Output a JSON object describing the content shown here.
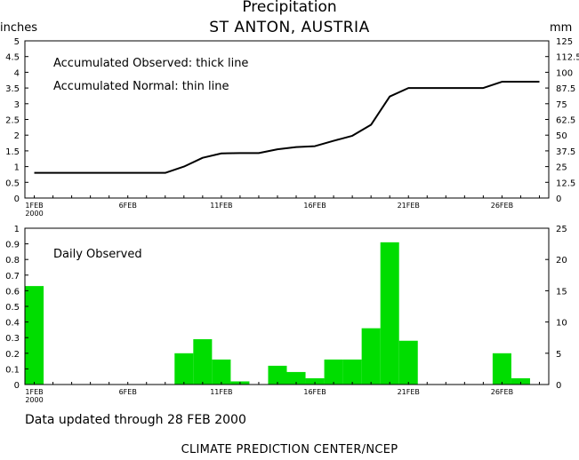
{
  "title": "Precipitation",
  "subtitle": "ST ANTON, AUSTRIA",
  "unit_left": "inches",
  "unit_right": "mm",
  "footer_updated": "Data updated through 28 FEB 2000",
  "footer_credit": "CLIMATE PREDICTION CENTER/NCEP",
  "colors": {
    "bars": "#00dd00",
    "lines": "#000000"
  },
  "chart_data": [
    {
      "type": "line",
      "x_dates": [
        "1FEB",
        "2FEB",
        "3FEB",
        "4FEB",
        "5FEB",
        "6FEB",
        "7FEB",
        "8FEB",
        "9FEB",
        "10FEB",
        "11FEB",
        "12FEB",
        "13FEB",
        "14FEB",
        "15FEB",
        "16FEB",
        "17FEB",
        "18FEB",
        "19FEB",
        "20FEB",
        "21FEB",
        "22FEB",
        "23FEB",
        "24FEB",
        "25FEB",
        "26FEB",
        "27FEB",
        "28FEB"
      ],
      "x_tick_labels": [
        "1FEB",
        "6FEB",
        "11FEB",
        "16FEB",
        "21FEB",
        "26FEB"
      ],
      "x_year_label": "2000",
      "ylim_inches": [
        0,
        5
      ],
      "y_ticks_inches": [
        "0",
        "0.5",
        "1",
        "1.5",
        "2",
        "2.5",
        "3",
        "3.5",
        "4",
        "4.5",
        "5"
      ],
      "ylim_mm": [
        0,
        125
      ],
      "y_ticks_mm": [
        "0",
        "12.5",
        "25",
        "37.5",
        "50",
        "62.5",
        "75",
        "87.5",
        "100",
        "112.5",
        "125"
      ],
      "annotations": [
        "Accumulated Observed: thick line",
        "Accumulated Normal: thin line"
      ],
      "series": [
        {
          "values": [
            0.8,
            0.8,
            0.8,
            0.8,
            0.8,
            0.8,
            0.8,
            0.8,
            1.0,
            1.28,
            1.42,
            1.43,
            1.43,
            1.55,
            1.62,
            1.65,
            1.82,
            1.98,
            2.33,
            3.23,
            3.5,
            3.5,
            3.5,
            3.5,
            3.5,
            3.7,
            3.7,
            3.7
          ]
        }
      ]
    },
    {
      "type": "bar",
      "x_dates": [
        "1FEB",
        "2FEB",
        "3FEB",
        "4FEB",
        "5FEB",
        "6FEB",
        "7FEB",
        "8FEB",
        "9FEB",
        "10FEB",
        "11FEB",
        "12FEB",
        "13FEB",
        "14FEB",
        "15FEB",
        "16FEB",
        "17FEB",
        "18FEB",
        "19FEB",
        "20FEB",
        "21FEB",
        "22FEB",
        "23FEB",
        "24FEB",
        "25FEB",
        "26FEB",
        "27FEB",
        "28FEB"
      ],
      "x_tick_labels": [
        "1FEB",
        "6FEB",
        "11FEB",
        "16FEB",
        "21FEB",
        "26FEB"
      ],
      "x_year_label": "2000",
      "ylim_inches": [
        0,
        1
      ],
      "y_ticks_inches": [
        "0",
        "0.1",
        "0.2",
        "0.3",
        "0.4",
        "0.5",
        "0.6",
        "0.7",
        "0.8",
        "0.9",
        "1"
      ],
      "ylim_mm": [
        0,
        25
      ],
      "y_ticks_mm": [
        "0",
        "5",
        "10",
        "15",
        "20",
        "25"
      ],
      "annotations": [
        "Daily Observed"
      ],
      "values": [
        0.63,
        0,
        0,
        0,
        0,
        0,
        0,
        0,
        0.2,
        0.29,
        0.16,
        0.02,
        0,
        0.12,
        0.08,
        0.04,
        0.16,
        0.16,
        0.36,
        0.91,
        0.28,
        0,
        0,
        0,
        0,
        0.2,
        0.04,
        0
      ]
    }
  ]
}
